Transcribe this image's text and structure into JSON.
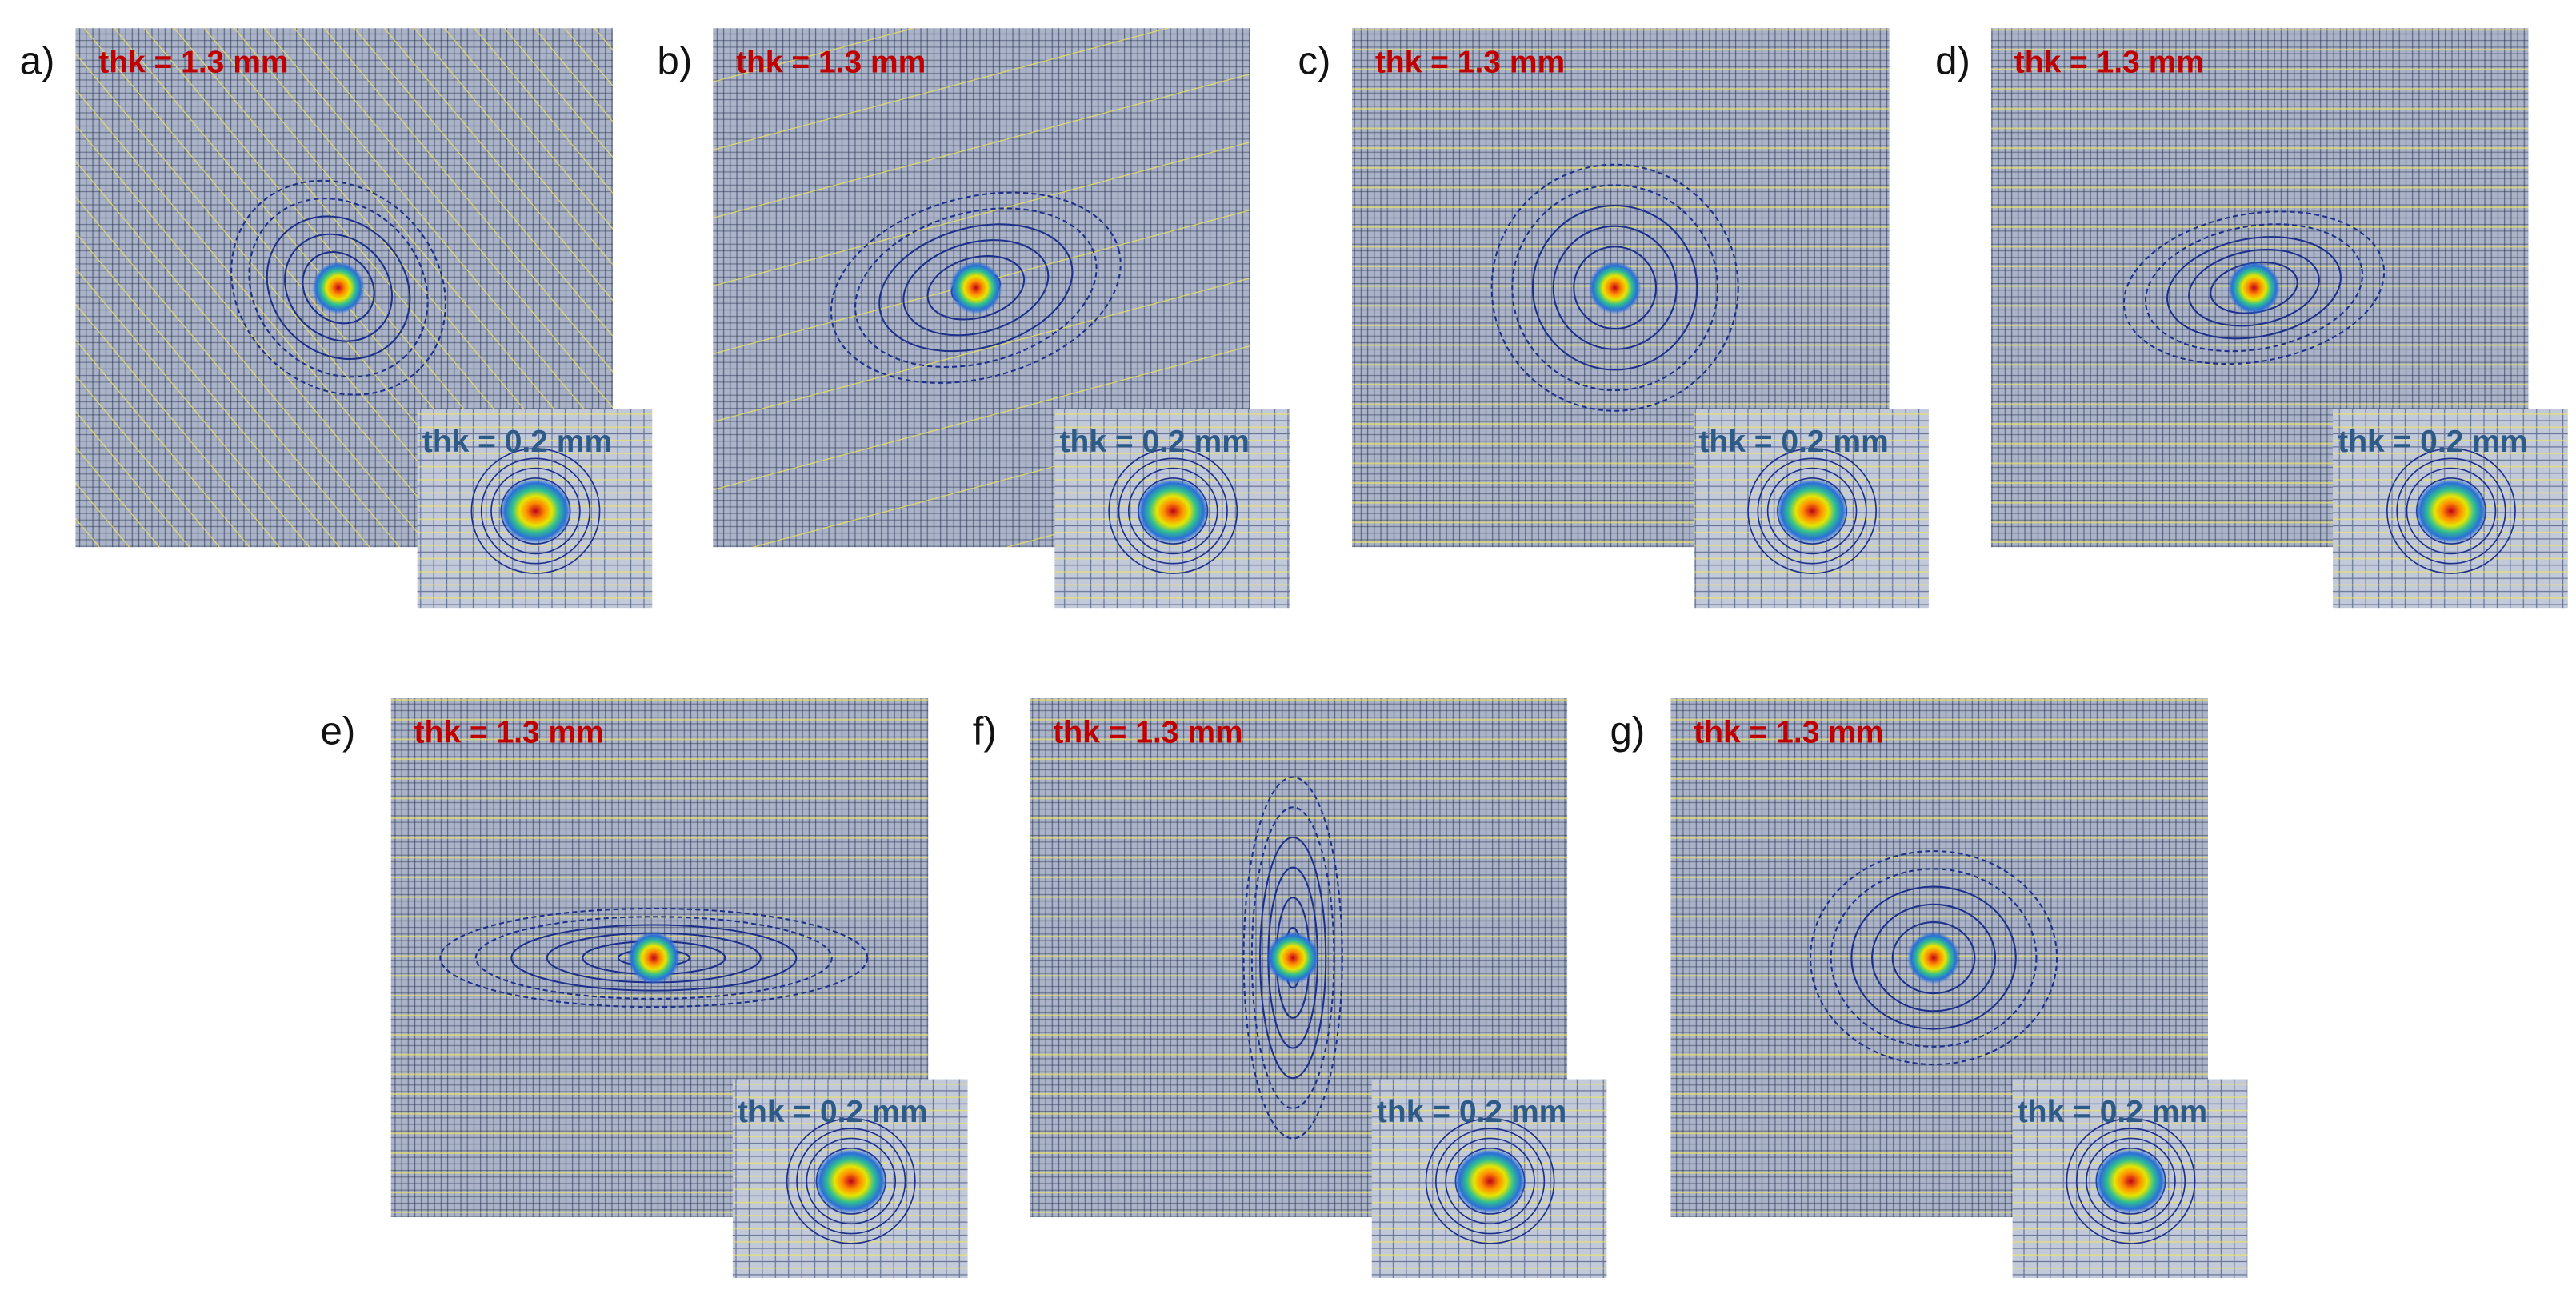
{
  "panels": [
    {
      "letter": "a)",
      "main_label": "thk = 1.3 mm",
      "inset_label": "thk = 0.2 mm"
    },
    {
      "letter": "b)",
      "main_label": "thk = 1.3 mm",
      "inset_label": "thk = 0.2 mm"
    },
    {
      "letter": "c)",
      "main_label": "thk = 1.3 mm",
      "inset_label": "thk = 0.2 mm"
    },
    {
      "letter": "d)",
      "main_label": "thk = 1.3 mm",
      "inset_label": "thk = 0.2 mm"
    },
    {
      "letter": "e)",
      "main_label": "thk = 1.3 mm",
      "inset_label": "thk = 0.2 mm"
    },
    {
      "letter": "f)",
      "main_label": "thk = 1.3 mm",
      "inset_label": "thk = 0.2 mm"
    },
    {
      "letter": "g)",
      "main_label": "thk = 1.3 mm",
      "inset_label": "thk = 0.2 mm"
    }
  ]
}
